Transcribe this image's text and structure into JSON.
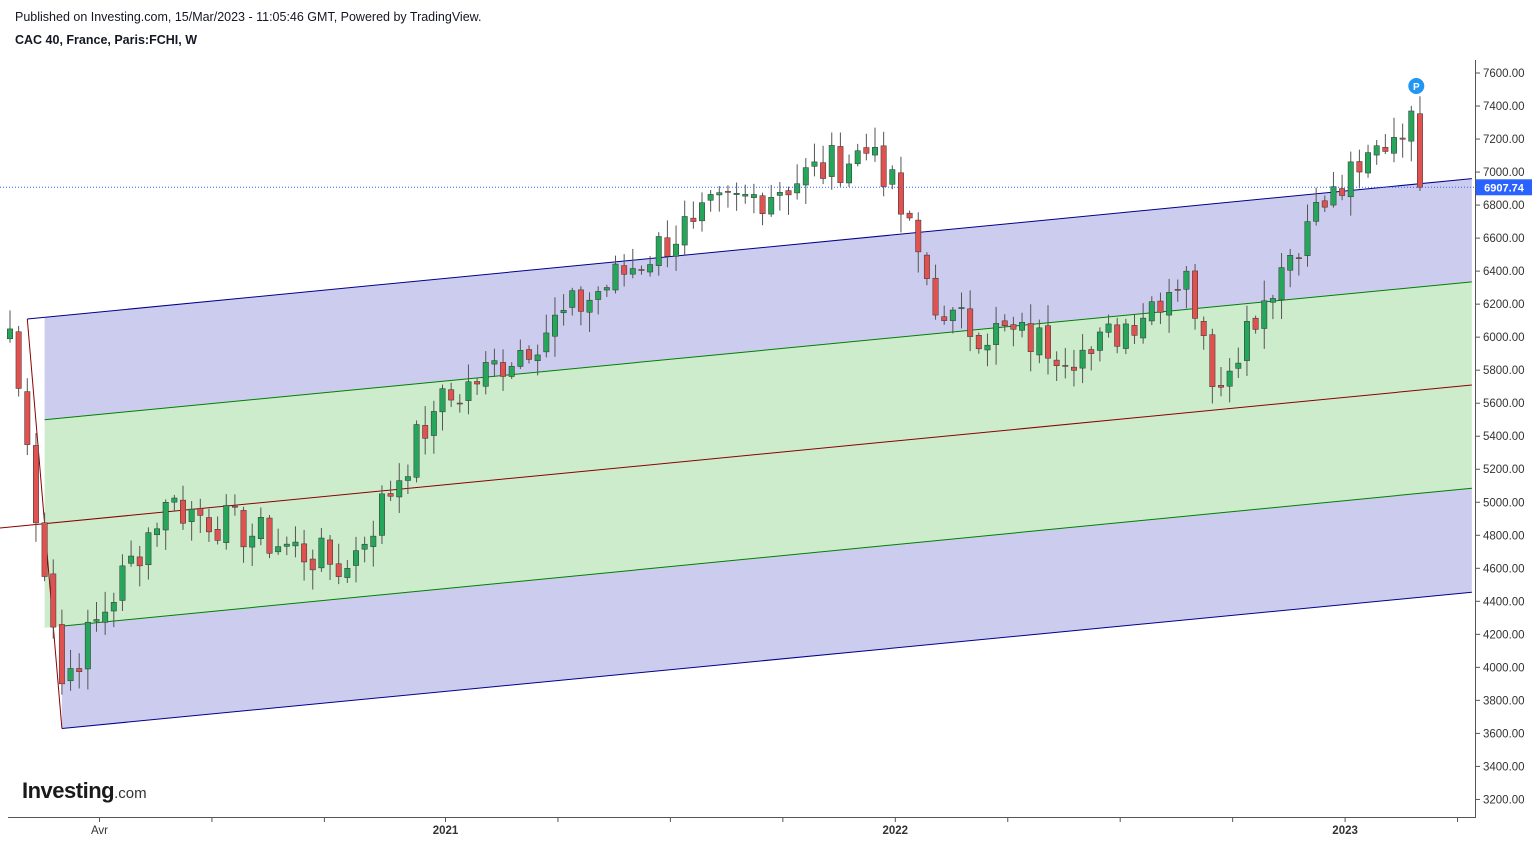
{
  "header": {
    "published": "Published on Investing.com, 15/Mar/2023 - 11:05:46 GMT, Powered by TradingView.",
    "symbol": "CAC 40, France, Paris:FCHI, W"
  },
  "logo": {
    "main": "Investing",
    "suffix": ".com"
  },
  "chart_data": {
    "type": "candlestick",
    "title": "CAC 40, France, Paris:FCHI, W",
    "ylim": [
      3100,
      7700
    ],
    "y_ticks": [
      "7600.00",
      "7400.00",
      "7200.00",
      "7000.00",
      "6800.00",
      "6600.00",
      "6400.00",
      "6200.00",
      "6000.00",
      "5800.00",
      "5600.00",
      "5400.00",
      "5200.00",
      "5000.00",
      "4800.00",
      "4600.00",
      "4400.00",
      "4200.00",
      "4000.00",
      "3800.00",
      "3600.00",
      "3400.00",
      "3200.00"
    ],
    "x_labels": [
      {
        "label": "Avr",
        "bold": false,
        "week": 10
      },
      {
        "label": "2021",
        "bold": true,
        "week": 50
      },
      {
        "label": "2022",
        "bold": true,
        "week": 102
      },
      {
        "label": "2023",
        "bold": true,
        "week": 154
      }
    ],
    "x_ticks_weeks": [
      10,
      23,
      36,
      50,
      63,
      76,
      89,
      102,
      115,
      128,
      141,
      154,
      167
    ],
    "last_price": "6907.74",
    "last_price_value": 6907.74,
    "marker": "P",
    "colors": {
      "up": "#26a65b",
      "down": "#e0524f",
      "outer_band": "#ccccee",
      "inner_band": "#cceccc",
      "outer_line": "#00008b",
      "inner_line": "#008000",
      "median_line": "#8b0000",
      "price_line": "#2962ff"
    },
    "channel": {
      "anchor_week": 6,
      "anchor_low": 3630,
      "median": {
        "week_a": 0,
        "value_a": 4850,
        "week_b": 169,
        "value_b": 5710
      },
      "upper_outer": {
        "week_a": 2,
        "value_a": 6110,
        "week_b": 169,
        "value_b": 6960
      },
      "upper_inner": {
        "week_a": 4,
        "value_a": 5500,
        "week_b": 169,
        "value_b": 6335
      },
      "lower_inner": {
        "week_a": 6,
        "value_a": 4250,
        "week_b": 169,
        "value_b": 5085
      },
      "lower_outer": {
        "week_a": 6,
        "value_a": 3630,
        "week_b": 169,
        "value_b": 4455
      }
    },
    "key_closes": [
      {
        "week": 0,
        "close": 6050
      },
      {
        "week": 6,
        "close": 3900
      },
      {
        "week": 18,
        "close": 5000
      },
      {
        "week": 39,
        "close": 4600
      },
      {
        "week": 49,
        "close": 5550
      },
      {
        "week": 79,
        "close": 6700
      },
      {
        "week": 100,
        "close": 7150
      },
      {
        "week": 108,
        "close": 6100
      },
      {
        "week": 125,
        "close": 5900
      },
      {
        "week": 136,
        "close": 6400
      },
      {
        "week": 139,
        "close": 5700
      },
      {
        "week": 150,
        "close": 6700
      },
      {
        "week": 156,
        "close": 7000
      },
      {
        "week": 162,
        "close": 7370
      },
      {
        "week": 163,
        "close": 6907.74
      }
    ]
  }
}
